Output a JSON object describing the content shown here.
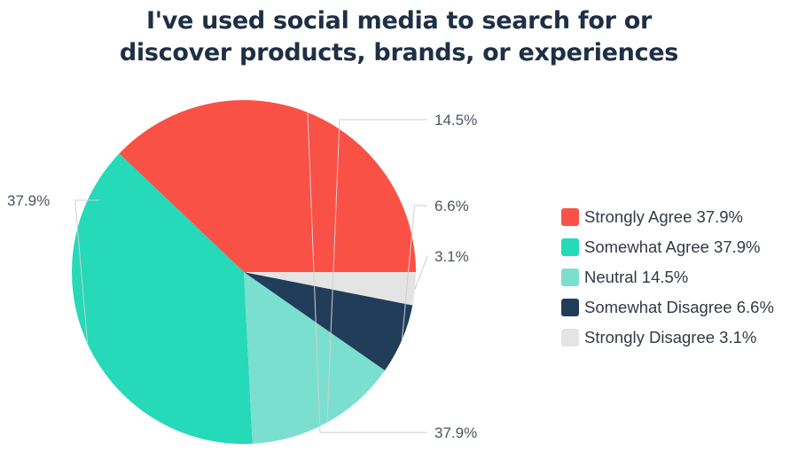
{
  "chart_data": {
    "type": "pie",
    "title": [
      "I've used social media to search for or",
      "discover products, brands, or experiences"
    ],
    "slices": [
      {
        "label": "Strongly Agree",
        "value": 37.9,
        "display": "37.9%",
        "legend": "Strongly Agree 37.9%",
        "color": "#fa5146"
      },
      {
        "label": "Somewhat Agree",
        "value": 37.9,
        "display": "37.9%",
        "legend": "Somewhat Agree 37.9%",
        "color": "#25d9b9"
      },
      {
        "label": "Neutral",
        "value": 14.5,
        "display": "14.5%",
        "legend": "Neutral 14.5%",
        "color": "#7adfcf"
      },
      {
        "label": "Somewhat Disagree",
        "value": 6.6,
        "display": "6.6%",
        "legend": "Somewhat Disagree 6.6%",
        "color": "#213d5a"
      },
      {
        "label": "Strongly Disagree",
        "value": 3.1,
        "display": "3.1%",
        "legend": "Strongly Disagree 3.1%",
        "color": "#e4e4e4"
      }
    ],
    "start_angle": "3 o'clock, counter-clockwise",
    "legend_position": "right"
  }
}
